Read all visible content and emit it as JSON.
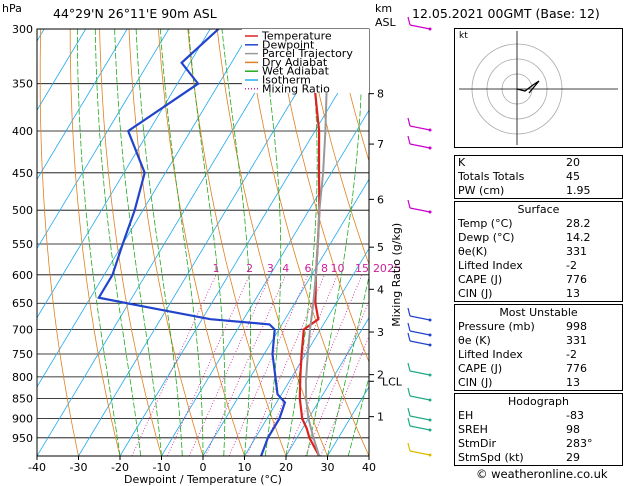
{
  "header": {
    "location": "44°29'N  26°11'E  90m  ASL",
    "datetime": "12.05.2021  00GMT  (Base: 12)",
    "pressure_unit": "hPa",
    "km_unit": "km",
    "asl_unit": "ASL"
  },
  "legend": {
    "items": [
      {
        "label": "Temperature",
        "color": "#dd2222",
        "style": "solid"
      },
      {
        "label": "Dewpoint",
        "color": "#2244cc",
        "style": "solid"
      },
      {
        "label": "Parcel Trajectory",
        "color": "#999999",
        "style": "solid"
      },
      {
        "label": "Dry Adiabat",
        "color": "#e08020",
        "style": "solid"
      },
      {
        "label": "Wet Adiabat",
        "color": "#22aa22",
        "style": "solid"
      },
      {
        "label": "Isotherm",
        "color": "#22aaee",
        "style": "solid"
      },
      {
        "label": "Mixing Ratio",
        "color": "#cc2299",
        "style": "dotted"
      }
    ]
  },
  "chart_data": {
    "type": "line",
    "xlabel": "Dewpoint / Temperature (°C)",
    "ylabel": "hPa",
    "y2label": "Mixing Ratio (g/kg)",
    "xlim": [
      -40,
      40
    ],
    "ylim": [
      1000,
      300
    ],
    "x_ticks": [
      -40,
      -30,
      -20,
      -10,
      0,
      10,
      20,
      30,
      40
    ],
    "pressure_ticks": [
      300,
      350,
      400,
      450,
      500,
      550,
      600,
      650,
      700,
      750,
      800,
      850,
      900,
      950
    ],
    "km_ticks": [
      {
        "label": "8",
        "p": 360
      },
      {
        "label": "7",
        "p": 415
      },
      {
        "label": "6",
        "p": 485
      },
      {
        "label": "5",
        "p": 555
      },
      {
        "label": "4",
        "p": 625
      },
      {
        "label": "3",
        "p": 705
      },
      {
        "label": "2",
        "p": 795
      },
      {
        "label": "1",
        "p": 895
      }
    ],
    "lcl_label": "LCL",
    "lcl_p": 810,
    "mixing_ratio_labels": [
      "1",
      "2",
      "3",
      "4",
      "6",
      "8",
      "10",
      "15",
      "20",
      "25"
    ],
    "series": [
      {
        "name": "Temperature",
        "color": "#dd2222",
        "points": [
          [
            1000,
            28
          ],
          [
            950,
            23
          ],
          [
            925,
            21
          ],
          [
            900,
            18.5
          ],
          [
            850,
            15
          ],
          [
            800,
            12
          ],
          [
            750,
            9
          ],
          [
            700,
            6
          ],
          [
            680,
            8
          ],
          [
            650,
            5
          ],
          [
            600,
            1
          ],
          [
            550,
            -3
          ],
          [
            500,
            -7.5
          ],
          [
            450,
            -13
          ],
          [
            400,
            -19
          ],
          [
            350,
            -27
          ],
          [
            320,
            -33
          ],
          [
            300,
            -37
          ]
        ]
      },
      {
        "name": "Dewpoint",
        "color": "#2244cc",
        "points": [
          [
            1000,
            14
          ],
          [
            950,
            13
          ],
          [
            900,
            13
          ],
          [
            860,
            12
          ],
          [
            840,
            9
          ],
          [
            800,
            6
          ],
          [
            750,
            2
          ],
          [
            700,
            -1
          ],
          [
            690,
            -3
          ],
          [
            680,
            -18
          ],
          [
            660,
            -33
          ],
          [
            640,
            -48
          ],
          [
            600,
            -48
          ],
          [
            550,
            -50
          ],
          [
            500,
            -52
          ],
          [
            450,
            -55
          ],
          [
            400,
            -65
          ],
          [
            350,
            -55
          ],
          [
            330,
            -62
          ],
          [
            300,
            -58
          ]
        ]
      },
      {
        "name": "Parcel Trajectory",
        "color": "#999999",
        "points": [
          [
            1000,
            28
          ],
          [
            950,
            24
          ],
          [
            900,
            20
          ],
          [
            850,
            16.5
          ],
          [
            810,
            14
          ],
          [
            750,
            10.5
          ],
          [
            700,
            7.5
          ],
          [
            650,
            4.5
          ],
          [
            600,
            1
          ],
          [
            550,
            -3
          ],
          [
            500,
            -7.5
          ],
          [
            450,
            -12
          ],
          [
            400,
            -17.5
          ],
          [
            350,
            -24
          ],
          [
            300,
            -31
          ]
        ]
      }
    ]
  },
  "indices": [
    {
      "name": "K",
      "value": "20"
    },
    {
      "name": "Totals Totals",
      "value": "45"
    },
    {
      "name": "PW (cm)",
      "value": "1.95"
    }
  ],
  "surface": {
    "title": "Surface",
    "rows": [
      {
        "name": "Temp (°C)",
        "value": "28.2"
      },
      {
        "name": "Dewp (°C)",
        "value": "14.2"
      },
      {
        "name": "θe(K)",
        "value": "331"
      },
      {
        "name": "Lifted Index",
        "value": "-2"
      },
      {
        "name": "CAPE (J)",
        "value": "776"
      },
      {
        "name": "CIN (J)",
        "value": "13"
      }
    ]
  },
  "most_unstable": {
    "title": "Most Unstable",
    "rows": [
      {
        "name": "Pressure (mb)",
        "value": "998"
      },
      {
        "name": "θe (K)",
        "value": "331"
      },
      {
        "name": "Lifted Index",
        "value": "-2"
      },
      {
        "name": "CAPE (J)",
        "value": "776"
      },
      {
        "name": "CIN (J)",
        "value": "13"
      }
    ]
  },
  "hodograph": {
    "title": "Hodograph",
    "unit_label": "kt",
    "rows": [
      {
        "name": "EH",
        "value": "-83"
      },
      {
        "name": "SREH",
        "value": "98"
      },
      {
        "name": "StmDir",
        "value": "283°"
      },
      {
        "name": "StmSpd (kt)",
        "value": "29"
      }
    ]
  },
  "credit": "© weatheronline.co.uk",
  "colors": {
    "temperature": "#dd2222",
    "dewpoint": "#2244cc",
    "parcel": "#999999",
    "dry_adiabat": "#e08020",
    "wet_adiabat": "#22aa22",
    "isotherm": "#22aaee",
    "mixing_ratio": "#cc2299"
  }
}
